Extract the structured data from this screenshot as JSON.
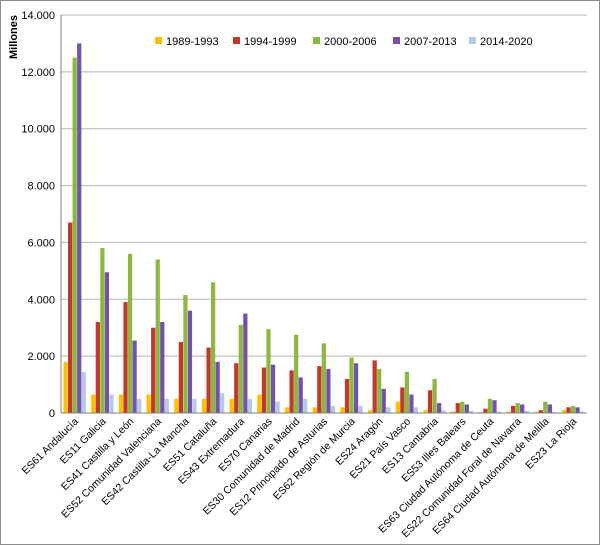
{
  "chart_data": {
    "type": "bar",
    "title": "",
    "xlabel": "",
    "ylabel": "Millones",
    "ylim": [
      0,
      14000
    ],
    "yticks": [
      0,
      2000,
      4000,
      6000,
      8000,
      10000,
      12000,
      14000
    ],
    "ytick_labels": [
      "0",
      "2.000",
      "4.000",
      "6.000",
      "8.000",
      "10.000",
      "12.000",
      "14.000"
    ],
    "grid": true,
    "legend_position": "top-right",
    "categories": [
      "ES61 Andalucía",
      "ES11 Galicia",
      "ES41 Castilla y León",
      "ES52 Comunidad Valenciana",
      "ES42 Castilla-La Mancha",
      "ES51 Cataluña",
      "ES43 Extremadura",
      "ES70 Canarias",
      "ES30 Comunidad de Madrid",
      "ES12 Principado de Asturias",
      "ES62 Región de Murcia",
      "ES24 Aragón",
      "ES21 País Vasco",
      "ES13 Cantabria",
      "ES53 Illes Balears",
      "ES63 Ciudad Autónoma de Ceuta",
      "ES22 Comunidad Foral de Navarra",
      "ES64 Ciudad Autónoma de Melilla",
      "ES23 La Rioja"
    ],
    "series": [
      {
        "name": "1989-1993",
        "color": "#FFC000",
        "values": [
          1800,
          650,
          650,
          650,
          500,
          500,
          500,
          650,
          200,
          200,
          200,
          100,
          400,
          100,
          50,
          30,
          50,
          30,
          100
        ]
      },
      {
        "name": "1994-1999",
        "color": "#C0392B",
        "values": [
          6700,
          3200,
          3900,
          3000,
          2500,
          2300,
          1750,
          1600,
          1500,
          1650,
          1200,
          1850,
          900,
          800,
          350,
          150,
          250,
          100,
          200
        ]
      },
      {
        "name": "2000-2006",
        "color": "#8DB83F",
        "values": [
          12500,
          5800,
          5600,
          5400,
          4150,
          4600,
          3100,
          2950,
          2750,
          2450,
          1950,
          1550,
          1450,
          1200,
          400,
          500,
          350,
          400,
          250
        ]
      },
      {
        "name": "2007-2013",
        "color": "#7253A8",
        "values": [
          13000,
          4950,
          2550,
          3200,
          3600,
          1800,
          3500,
          1700,
          1250,
          1550,
          1750,
          850,
          650,
          350,
          300,
          450,
          300,
          300,
          200
        ]
      },
      {
        "name": "2014-2020",
        "color": "#B8C9E6",
        "values": [
          1450,
          650,
          500,
          500,
          500,
          700,
          500,
          400,
          500,
          250,
          250,
          200,
          200,
          100,
          80,
          50,
          80,
          40,
          50
        ]
      }
    ]
  }
}
